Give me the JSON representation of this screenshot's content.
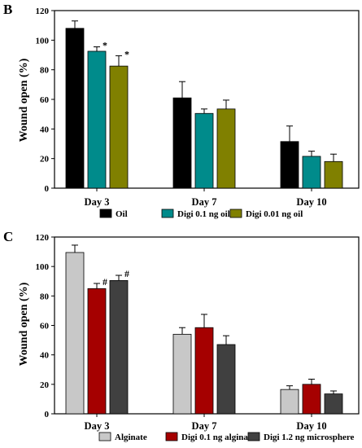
{
  "chart_data": [
    {
      "panel": "B",
      "type": "bar",
      "ylabel": "Wound open (%)",
      "ylim": [
        0,
        120
      ],
      "yticks": [
        "0",
        "20",
        "40",
        "60",
        "80",
        "100",
        "120"
      ],
      "categories": [
        "Day 3",
        "Day 7",
        "Day 10"
      ],
      "series": [
        {
          "name": "Oil",
          "color": "#000000",
          "values": [
            108,
            61,
            31.5
          ],
          "errors": [
            5,
            11,
            10.5
          ],
          "annotations": [
            "",
            "",
            ""
          ]
        },
        {
          "name": "Digi 0.1 ng oil",
          "color": "#008b8b",
          "values": [
            92.5,
            50.5,
            21.5
          ],
          "errors": [
            3,
            3,
            3.5
          ],
          "annotations": [
            "*",
            "",
            ""
          ]
        },
        {
          "name": "Digi 0.01 ng oil",
          "color": "#808000",
          "values": [
            82.5,
            53.5,
            18
          ],
          "errors": [
            7,
            6,
            5
          ],
          "annotations": [
            "*",
            "",
            ""
          ]
        }
      ]
    },
    {
      "panel": "C",
      "type": "bar",
      "ylabel": "Wound open (%)",
      "ylim": [
        0,
        120
      ],
      "yticks": [
        "0",
        "20",
        "40",
        "60",
        "80",
        "100",
        "120"
      ],
      "categories": [
        "Day 3",
        "Day 7",
        "Day 10"
      ],
      "series": [
        {
          "name": "Alginate",
          "color": "#c8c8c8",
          "values": [
            109.5,
            54,
            16.5
          ],
          "errors": [
            5,
            4.5,
            2.5
          ],
          "annotations": [
            "",
            "",
            ""
          ]
        },
        {
          "name": "Digi 0.1 ng alginate",
          "color": "#a50000",
          "values": [
            85,
            58.5,
            20
          ],
          "errors": [
            3.5,
            9,
            3.5
          ],
          "annotations": [
            "#",
            "",
            ""
          ]
        },
        {
          "name": "Digi 1.2 ng microsphere",
          "color": "#404040",
          "values": [
            90.5,
            47,
            13.5
          ],
          "errors": [
            3.5,
            6,
            2
          ],
          "annotations": [
            "#",
            "",
            ""
          ]
        }
      ]
    }
  ]
}
